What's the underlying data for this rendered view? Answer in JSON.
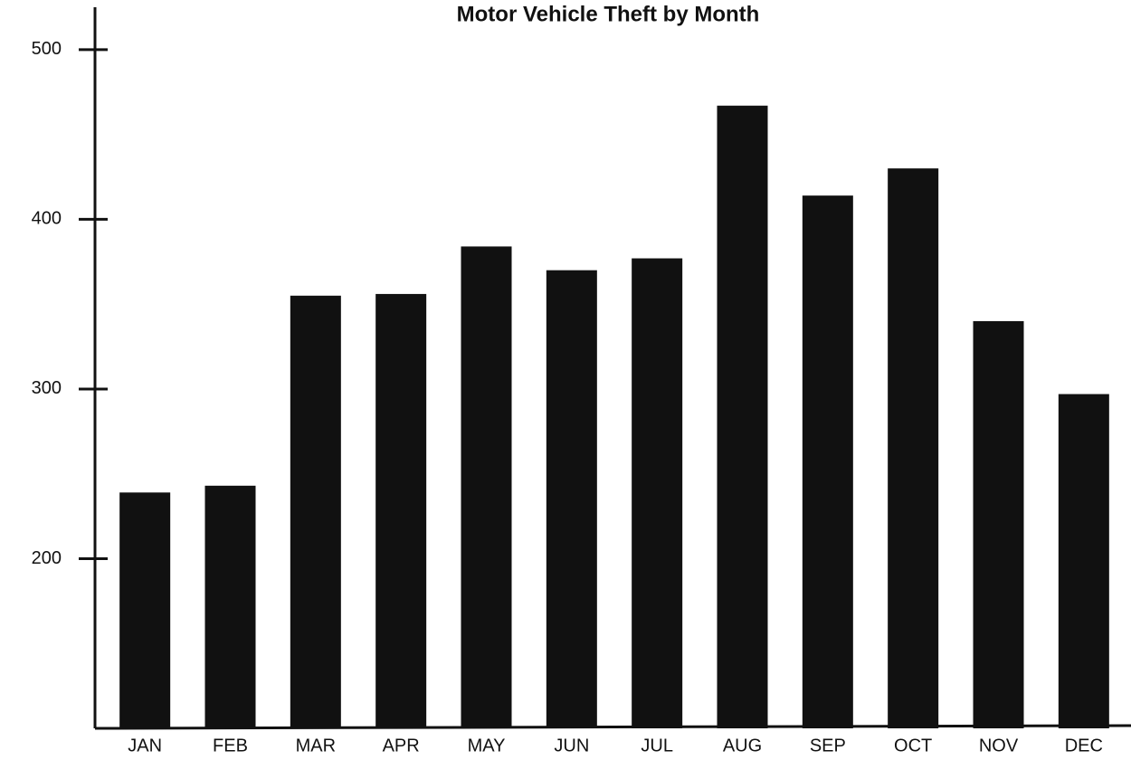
{
  "chart_data": {
    "type": "bar",
    "title": "Motor Vehicle Theft by Month",
    "categories": [
      "JAN",
      "FEB",
      "MAR",
      "APR",
      "MAY",
      "JUN",
      "JUL",
      "AUG",
      "SEP",
      "OCT",
      "NOV",
      "DEC"
    ],
    "values": [
      239,
      243,
      355,
      356,
      384,
      370,
      377,
      467,
      414,
      430,
      340,
      297
    ],
    "color": "#111111",
    "ylim": [
      100,
      525
    ],
    "yticks": [
      200,
      300,
      400,
      500
    ],
    "grid": false
  }
}
